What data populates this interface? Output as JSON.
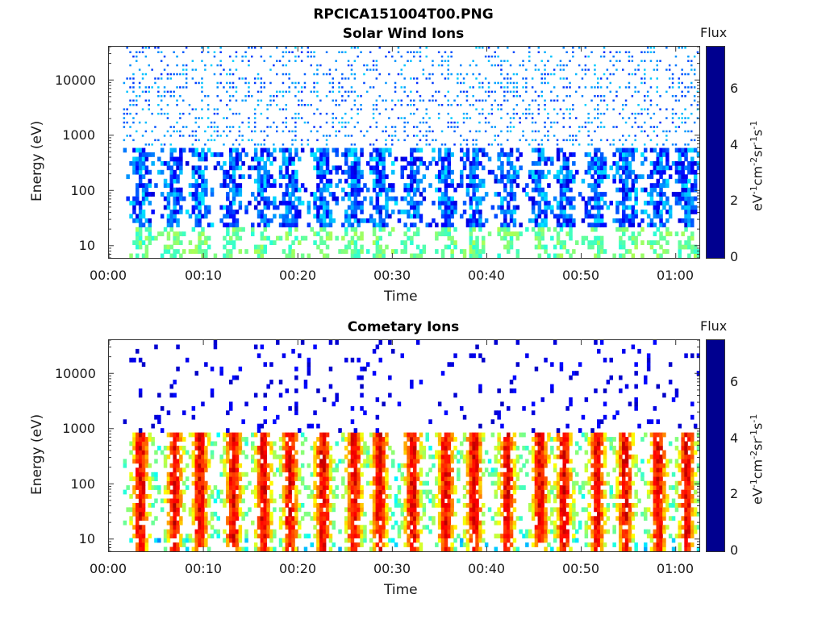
{
  "figure": {
    "title": "RPCICA151004T00.PNG"
  },
  "colors": {
    "jet": [
      "#00008f",
      "#0000ff",
      "#0080ff",
      "#00ffff",
      "#80ff80",
      "#ffff00",
      "#ff8000",
      "#ff0000",
      "#800000"
    ]
  },
  "chart_data": [
    {
      "type": "heatmap",
      "title": "Solar Wind Ions",
      "xlabel": "Time",
      "ylabel": "Energy (eV)",
      "x_ticks": [
        "00:00",
        "00:10",
        "00:20",
        "00:30",
        "00:40",
        "00:50",
        "01:00"
      ],
      "y_ticks": [
        "10",
        "100",
        "1000",
        "10000"
      ],
      "yscale": "log",
      "ylim": [
        6,
        40000
      ],
      "xlim_minutes": [
        0,
        62.5
      ],
      "colorbar": {
        "title": "Flux",
        "unit": "eV-1cm-2sr-1s-1",
        "ticks": [
          "0",
          "2",
          "4",
          "6"
        ],
        "range": [
          0,
          7.3
        ]
      },
      "burst_times_minutes": [
        3.2,
        6.8,
        9.5,
        13.0,
        16.2,
        19.0,
        22.5,
        25.8,
        28.5,
        32.0,
        35.5,
        38.5,
        42.0,
        45.5,
        48.0,
        51.5,
        54.5,
        58.0,
        61.0
      ],
      "description_values": {
        "typical_flux_peak": 1.8,
        "dominant_energy_band_eV": [
          20,
          600
        ]
      }
    },
    {
      "type": "heatmap",
      "title": "Cometary Ions",
      "xlabel": "Time",
      "ylabel": "Energy (eV)",
      "x_ticks": [
        "00:00",
        "00:10",
        "00:20",
        "00:30",
        "00:40",
        "00:50",
        "01:00"
      ],
      "y_ticks": [
        "10",
        "100",
        "1000",
        "10000"
      ],
      "yscale": "log",
      "ylim": [
        6,
        40000
      ],
      "xlim_minutes": [
        0,
        62.5
      ],
      "colorbar": {
        "title": "Flux",
        "unit": "eV-1cm-2sr-1s-1",
        "ticks": [
          "0",
          "2",
          "4",
          "6"
        ],
        "range": [
          0,
          7.3
        ]
      },
      "burst_times_minutes": [
        3.2,
        6.8,
        9.5,
        13.0,
        16.2,
        19.0,
        22.5,
        25.8,
        28.5,
        32.0,
        35.5,
        38.5,
        42.0,
        45.5,
        48.0,
        51.5,
        54.5,
        58.0,
        61.0
      ],
      "description_values": {
        "typical_flux_peak": 5.5,
        "dominant_energy_band_eV": [
          7,
          700
        ]
      }
    }
  ]
}
